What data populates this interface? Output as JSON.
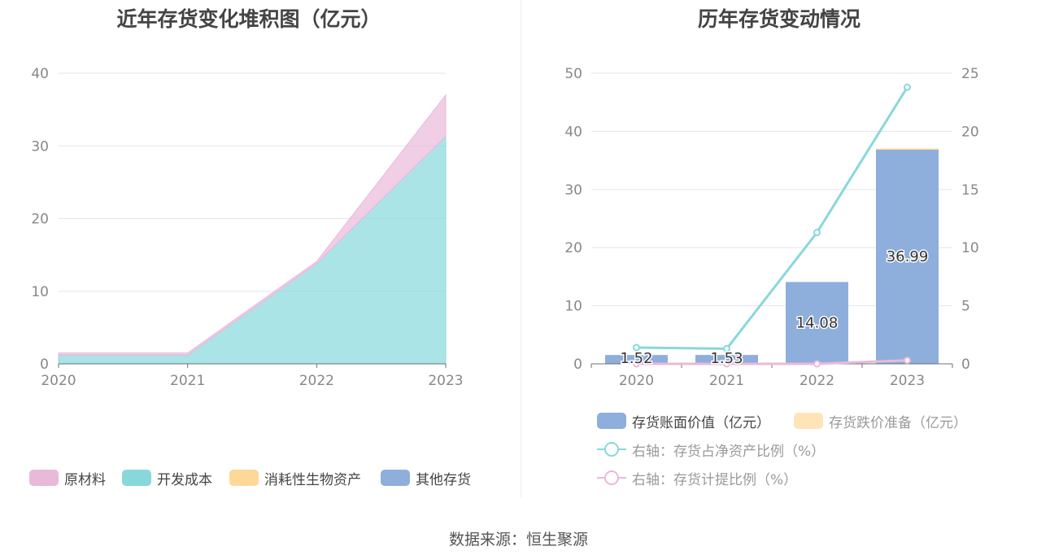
{
  "left_chart": {
    "title": "近年存货变化堆积图（亿元）",
    "legend": [
      {
        "label": "原材料",
        "color": "#e9b9da"
      },
      {
        "label": "开发成本",
        "color": "#88d8db"
      },
      {
        "label": "消耗性生物资产",
        "color": "#ffd898"
      },
      {
        "label": "其他存货",
        "color": "#8eaedb"
      }
    ]
  },
  "right_chart": {
    "title": "历年存货变动情况",
    "legend": [
      {
        "label": "存货账面价值（亿元）",
        "color": "#8eaedb",
        "kind": "box",
        "active": true
      },
      {
        "label": "存货跌价准备（亿元）",
        "color": "#ffe4b8",
        "kind": "box",
        "active": false
      },
      {
        "label": "右轴：存货占净资产比例（%）",
        "color": "#88d8db",
        "kind": "line",
        "active": false
      },
      {
        "label": "右轴：存货计提比例（%）",
        "color": "#e9b9da",
        "kind": "line",
        "active": false
      }
    ]
  },
  "source": "数据来源：恒生聚源",
  "chart_data": [
    {
      "type": "area",
      "stacked": true,
      "title": "近年存货变化堆积图（亿元）",
      "x": [
        "2020",
        "2021",
        "2022",
        "2023"
      ],
      "ylim": [
        0,
        40
      ],
      "yticks": [
        0,
        10,
        20,
        30,
        40
      ],
      "grid": true,
      "legend_position": "bottom",
      "series": [
        {
          "name": "原材料",
          "color": "#e9b9da",
          "values": [
            0.3,
            0.3,
            0.3,
            5.7
          ]
        },
        {
          "name": "开发成本",
          "color": "#88d8db",
          "values": [
            1.2,
            1.2,
            13.8,
            31.3
          ]
        },
        {
          "name": "消耗性生物资产",
          "color": "#ffd898",
          "values": [
            0,
            0,
            0,
            0
          ]
        },
        {
          "name": "其他存货",
          "color": "#8eaedb",
          "values": [
            0,
            0,
            0,
            0
          ]
        }
      ]
    },
    {
      "type": "bar",
      "title": "历年存货变动情况",
      "categories": [
        "2020",
        "2021",
        "2022",
        "2023"
      ],
      "ylim": [
        0,
        50
      ],
      "yticks": [
        0,
        10,
        20,
        30,
        40,
        50
      ],
      "y2lim": [
        0,
        25
      ],
      "y2ticks": [
        0,
        5,
        10,
        15,
        20,
        25
      ],
      "grid": true,
      "legend_position": "bottom",
      "series": [
        {
          "name": "存货账面价值（亿元）",
          "kind": "bar",
          "axis": "left",
          "color": "#8eaedb",
          "values": [
            1.52,
            1.53,
            14.08,
            36.99
          ],
          "labels": [
            "1.52",
            "1.53",
            "14.08",
            "36.99"
          ]
        },
        {
          "name": "存货跌价准备（亿元）",
          "kind": "bar",
          "axis": "left",
          "color": "#ffd898",
          "values": [
            0,
            0,
            0,
            0.05
          ]
        },
        {
          "name": "右轴：存货占净资产比例（%）",
          "kind": "line",
          "axis": "right",
          "color": "#88d8db",
          "values": [
            1.4,
            1.3,
            11.3,
            23.8
          ]
        },
        {
          "name": "右轴：存货计提比例（%）",
          "kind": "line",
          "axis": "right",
          "color": "#e9b9da",
          "values": [
            0,
            0,
            0,
            0.3
          ]
        }
      ]
    }
  ]
}
